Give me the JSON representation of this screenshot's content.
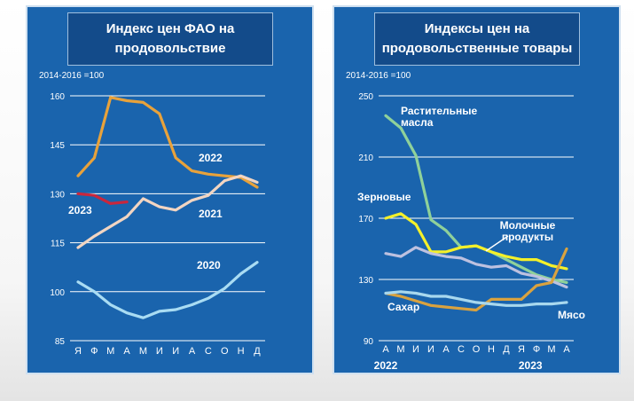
{
  "panels": [
    {
      "title_line1": "Индекс цен ФАО на",
      "title_line2": "продовольствие",
      "base_label": "2014-2016 =100"
    },
    {
      "title_line1": "Индексы цен на",
      "title_line2": "продовольственные товары",
      "base_label": "2014-2016 =100"
    }
  ],
  "chart_data": [
    {
      "type": "line",
      "ylim": [
        85,
        160
      ],
      "yticks": [
        85,
        100,
        115,
        130,
        145,
        160
      ],
      "categories": [
        "Я",
        "Ф",
        "М",
        "А",
        "М",
        "И",
        "И",
        "А",
        "С",
        "О",
        "Н",
        "Д"
      ],
      "series": [
        {
          "name": "2022",
          "color": "#e8a23b",
          "values": [
            135.5,
            141,
            159.5,
            158.5,
            158,
            154.5,
            141,
            137,
            136,
            135.5,
            135,
            132
          ]
        },
        {
          "name": "2021",
          "color": "#f2d5c2",
          "values": [
            113.5,
            117,
            120,
            123,
            128.5,
            126,
            125,
            128,
            129.5,
            134,
            135.5,
            133.5
          ]
        },
        {
          "name": "2020",
          "color": "#a9dcf3",
          "values": [
            103,
            100,
            96,
            93.5,
            92,
            94,
            94.5,
            96,
            98,
            101,
            105.5,
            109
          ]
        },
        {
          "name": "2023",
          "color": "#c9273d",
          "values": [
            130,
            129.5,
            127,
            127.5,
            null,
            null,
            null,
            null,
            null,
            null,
            null,
            null
          ]
        }
      ]
    },
    {
      "type": "line",
      "ylim": [
        90,
        250
      ],
      "yticks": [
        90,
        130,
        170,
        210,
        250
      ],
      "categories": [
        "А",
        "М",
        "И",
        "И",
        "А",
        "С",
        "О",
        "Н",
        "Д",
        "Я",
        "Ф",
        "М",
        "А"
      ],
      "year_labels": [
        {
          "text": "2022",
          "at": 0
        },
        {
          "text": "2023",
          "at": 9.6
        }
      ],
      "series": [
        {
          "name": "Растительные масла",
          "label_lines": [
            "Растительные",
            "масла"
          ],
          "color": "#8fd19a",
          "values": [
            237,
            229,
            211,
            169,
            162,
            151,
            152,
            148,
            143,
            138,
            133,
            130,
            128
          ]
        },
        {
          "name": "Зерновые",
          "label_lines": [
            "Зерновые"
          ],
          "color": "#f4f02a",
          "values": [
            170,
            173,
            166,
            148,
            148,
            151,
            152,
            148,
            145,
            143,
            143,
            139,
            137
          ]
        },
        {
          "name": "Молочные продукты",
          "label_lines": [
            "Молочные",
            "продукты"
          ],
          "color": "#bdc1e0",
          "values": [
            147,
            145,
            151,
            147,
            145,
            144,
            140,
            138,
            139,
            134,
            132,
            129,
            125
          ]
        },
        {
          "name": "Сахар",
          "label_lines": [
            "Сахар"
          ],
          "color": "#d9a23f",
          "values": [
            121,
            119,
            116,
            113,
            112,
            111,
            110,
            117,
            117,
            117,
            126,
            128,
            150
          ]
        },
        {
          "name": "Мясо",
          "label_lines": [
            "Мясо"
          ],
          "color": "#a8d8ee",
          "values": [
            121,
            122,
            121,
            119,
            119,
            117,
            115,
            114,
            113,
            113,
            114,
            114,
            115
          ]
        }
      ]
    }
  ]
}
